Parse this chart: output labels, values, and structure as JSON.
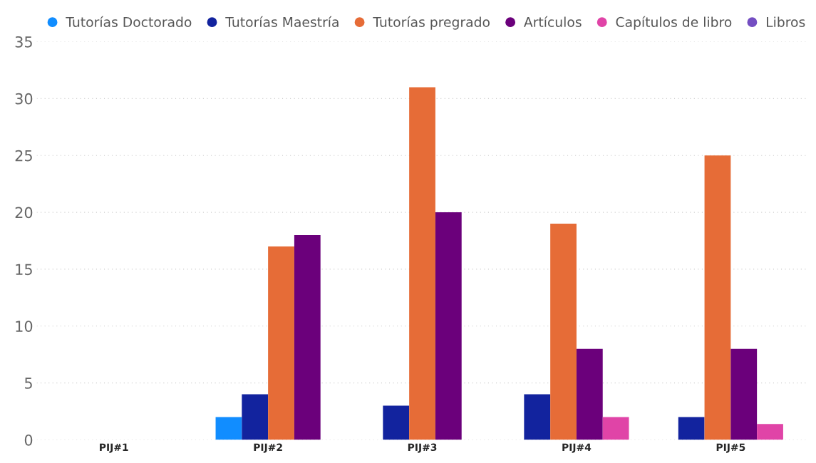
{
  "chart_data": {
    "type": "bar",
    "categories": [
      "PIJ#1",
      "PIJ#2",
      "PIJ#3",
      "PIJ#4",
      "PIJ#5"
    ],
    "series": [
      {
        "name": "Tutorías Doctorado",
        "color": "#118dff",
        "values": [
          null,
          2,
          null,
          null,
          null
        ]
      },
      {
        "name": "Tutorías Maestría",
        "color": "#12239e",
        "values": [
          null,
          4,
          3,
          4,
          2
        ]
      },
      {
        "name": "Tutorías pregrado",
        "color": "#e66c37",
        "values": [
          null,
          17,
          31,
          19,
          25
        ]
      },
      {
        "name": "Artículos",
        "color": "#6b007b",
        "values": [
          null,
          18,
          20,
          8,
          8
        ]
      },
      {
        "name": "Capítulos de libro",
        "color": "#e044a7",
        "values": [
          null,
          null,
          null,
          2,
          1.4
        ]
      },
      {
        "name": "Libros",
        "color": "#744ec2",
        "values": [
          null,
          null,
          null,
          null,
          null
        ]
      }
    ],
    "ylim": [
      0,
      35
    ],
    "yticks": [
      0,
      5,
      10,
      15,
      20,
      25,
      30,
      35
    ],
    "grid": "y",
    "legend": "top",
    "marker": "circle"
  }
}
